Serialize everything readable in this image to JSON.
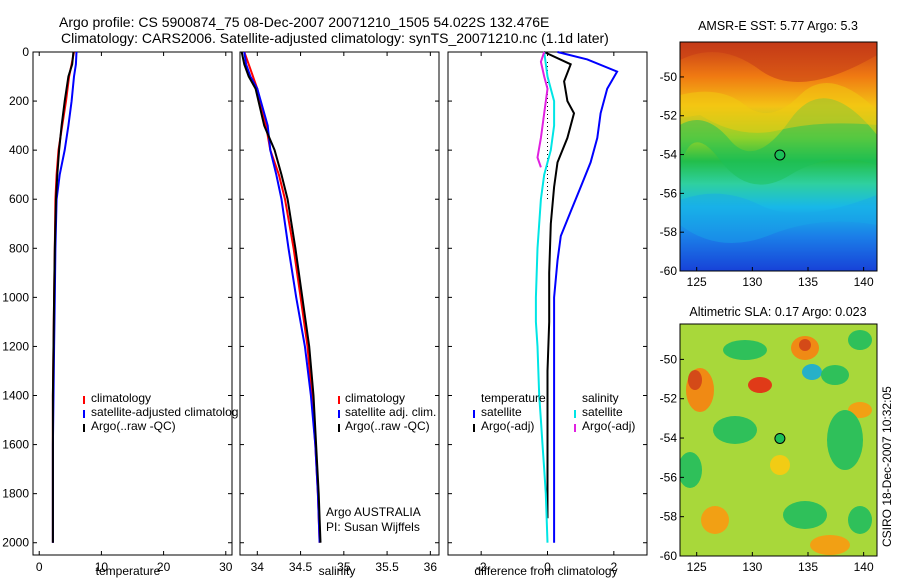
{
  "header": {
    "title": "Argo profile: CS 5900874_75 08-Dec-2007 20071210_1505 54.022S 132.476E",
    "subtitle": "Climatology: CARS2006. Satellite-adjusted climatology: synTS_20071210.nc (1.1d later)"
  },
  "side_stamp": "CSIRO 18-Dec-2007 10:32:05",
  "colors": {
    "red": "#ff0000",
    "blue": "#0000ff",
    "black": "#000000",
    "cyan": "#00e5e5",
    "magenta": "#e020e0"
  },
  "chart_data": [
    {
      "type": "line",
      "id": "temperature",
      "xlabel": "temperature",
      "xlim": [
        -1,
        31
      ],
      "ylim": [
        2050,
        0
      ],
      "xticks": [
        0,
        10,
        20,
        30
      ],
      "yticks": [
        0,
        200,
        400,
        600,
        800,
        1000,
        1200,
        1400,
        1600,
        1800,
        2000
      ],
      "legend": [
        "climatology",
        "satellite-adjusted climatolog",
        "Argo(..raw -QC)"
      ],
      "series": [
        {
          "name": "climatology",
          "color": "red",
          "x": [
            5.6,
            5.2,
            4.8,
            4.3,
            3.7,
            3.1,
            2.8,
            2.6,
            2.5,
            2.4,
            2.3,
            2.2,
            2.2,
            2.2
          ],
          "y": [
            0,
            50,
            100,
            200,
            300,
            400,
            500,
            600,
            800,
            1000,
            1200,
            1400,
            1600,
            2000
          ]
        },
        {
          "name": "satellite-adjusted climatology",
          "color": "blue",
          "x": [
            6.0,
            5.9,
            5.6,
            5.2,
            4.7,
            4.1,
            3.3,
            2.8,
            2.6,
            2.5,
            2.4,
            2.3,
            2.2,
            2.2
          ],
          "y": [
            0,
            50,
            100,
            200,
            300,
            400,
            500,
            600,
            800,
            1000,
            1200,
            1400,
            1600,
            2000
          ]
        },
        {
          "name": "Argo(..raw -QC)",
          "color": "black",
          "x": [
            5.5,
            5.3,
            4.7,
            4.1,
            3.6,
            3.2,
            2.9,
            2.7,
            2.5,
            2.4,
            2.3,
            2.2,
            2.2,
            2.2
          ],
          "y": [
            0,
            50,
            100,
            200,
            300,
            400,
            500,
            600,
            800,
            1000,
            1200,
            1400,
            1600,
            2000
          ]
        }
      ]
    },
    {
      "type": "line",
      "id": "salinity",
      "xlabel": "salinity",
      "xlim": [
        33.8,
        36.1
      ],
      "ylim": [
        2050,
        0
      ],
      "xticks": [
        34,
        34.5,
        35,
        35.5,
        36
      ],
      "legend": [
        "climatology",
        "satellite adj. clim.",
        "Argo(..raw -QC)"
      ],
      "annotation": [
        "Argo AUSTRALIA",
        "PI: Susan Wijffels"
      ],
      "series": [
        {
          "name": "climatology",
          "color": "red",
          "x": [
            33.85,
            33.9,
            33.95,
            34.0,
            34.1,
            34.15,
            34.25,
            34.32,
            34.42,
            34.5,
            34.58,
            34.63,
            34.67,
            34.7,
            34.72
          ],
          "y": [
            0,
            50,
            100,
            150,
            300,
            400,
            500,
            600,
            800,
            1000,
            1200,
            1400,
            1600,
            1800,
            2000
          ]
        },
        {
          "name": "satellite adj. clim.",
          "color": "blue",
          "x": [
            33.85,
            33.87,
            33.92,
            34.0,
            34.12,
            34.15,
            34.22,
            34.28,
            34.36,
            34.45,
            34.55,
            34.62,
            34.67,
            34.7,
            34.72
          ],
          "y": [
            0,
            50,
            100,
            150,
            300,
            400,
            500,
            600,
            800,
            1000,
            1200,
            1400,
            1600,
            1800,
            2000
          ]
        },
        {
          "name": "Argo(..raw -QC)",
          "color": "black",
          "x": [
            33.82,
            33.85,
            33.9,
            33.98,
            34.08,
            34.2,
            34.28,
            34.35,
            34.44,
            34.52,
            34.6,
            34.65,
            34.68,
            34.71,
            34.73
          ],
          "y": [
            0,
            50,
            100,
            150,
            300,
            400,
            500,
            600,
            800,
            1000,
            1200,
            1400,
            1600,
            1800,
            2000
          ]
        }
      ]
    },
    {
      "type": "line",
      "id": "difference",
      "xlabel": "difference from climatology",
      "xlim": [
        -3,
        3
      ],
      "ylim": [
        2050,
        0
      ],
      "xticks": [
        -2,
        0,
        2
      ],
      "legend_headers": [
        "temperature",
        "salinity"
      ],
      "legend": [
        "satellite",
        "Argo(-adj)",
        "satellite",
        "Argo(-adj)"
      ],
      "series": [
        {
          "name": "temperature satellite",
          "color": "blue",
          "x": [
            0.3,
            1.2,
            2.1,
            1.8,
            1.6,
            1.5,
            1.3,
            1.0,
            0.7,
            0.4,
            0.3,
            0.2,
            0.2,
            0.2,
            0.2,
            0.2,
            0.2
          ],
          "y": [
            0,
            30,
            80,
            150,
            250,
            350,
            450,
            550,
            650,
            750,
            850,
            1000,
            1200,
            1400,
            1600,
            1800,
            2000
          ]
        },
        {
          "name": "temperature Argo(-adj)",
          "color": "black",
          "x": [
            -0.1,
            0.7,
            0.5,
            0.6,
            0.8,
            0.6,
            0.3,
            0.2,
            0.1,
            0.05,
            0.05,
            0.0,
            0.0,
            0.0,
            0.0
          ],
          "y": [
            0,
            50,
            120,
            200,
            250,
            350,
            450,
            550,
            700,
            900,
            1100,
            1300,
            1500,
            1700,
            1900
          ]
        },
        {
          "name": "salinity satellite",
          "color": "cyan",
          "x": [
            -0.1,
            0.0,
            0.2,
            0.2,
            0.1,
            -0.1,
            -0.2,
            -0.3,
            -0.35,
            -0.35,
            -0.3,
            -0.25,
            -0.2,
            -0.15,
            -0.1,
            -0.05,
            0.0
          ],
          "y": [
            0,
            100,
            200,
            300,
            400,
            500,
            600,
            800,
            1000,
            1100,
            1200,
            1400,
            1500,
            1600,
            1700,
            1800,
            2000
          ]
        },
        {
          "name": "salinity Argo(-adj)",
          "color": "magenta",
          "x": [
            -0.1,
            -0.2,
            -0.1,
            0.0,
            -0.1,
            -0.2,
            -0.3,
            -0.2
          ],
          "y": [
            0,
            40,
            100,
            150,
            250,
            350,
            430,
            470
          ]
        }
      ]
    }
  ],
  "maps": [
    {
      "title": "AMSR-E SST: 5.77 Argo: 5.3",
      "xticks": [
        125,
        130,
        135,
        140
      ],
      "yticks": [
        -50,
        -52,
        -54,
        -56,
        -58,
        -60
      ],
      "xlim": [
        123.5,
        141.2
      ],
      "ylim": [
        -60,
        -48.2
      ],
      "marker": {
        "lon": 132.476,
        "lat": -54.022
      }
    },
    {
      "title": "Altimetric SLA: 0.17 Argo: 0.023",
      "xticks": [
        125,
        130,
        135,
        140
      ],
      "yticks": [
        -50,
        -52,
        -54,
        -56,
        -58,
        -60
      ],
      "xlim": [
        123.5,
        141.2
      ],
      "ylim": [
        -60,
        -48.2
      ],
      "marker": {
        "lon": 132.476,
        "lat": -54.022
      }
    }
  ]
}
